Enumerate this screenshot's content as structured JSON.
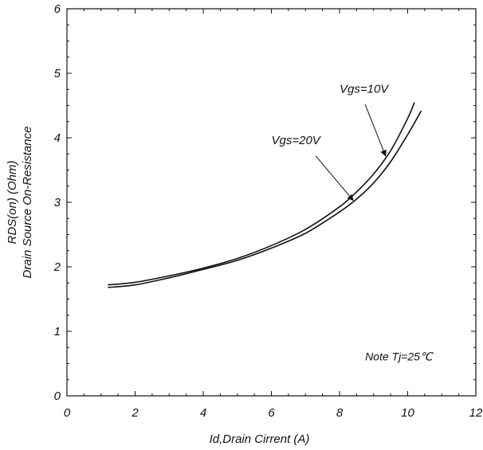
{
  "chart_data": {
    "type": "line",
    "title": "",
    "xlabel": "Id,Drain Cirrent (A)",
    "ylabel_lines": [
      "RDS(on) (Ohm)",
      "Drain Source On-Resistance"
    ],
    "xlim": [
      0,
      12
    ],
    "ylim": [
      0,
      6
    ],
    "x_ticks": [
      "0",
      "2",
      "4",
      "6",
      "8",
      "10",
      "12"
    ],
    "y_ticks": [
      "0",
      "1",
      "2",
      "3",
      "4",
      "5",
      "6"
    ],
    "grid": false,
    "series": [
      {
        "name": "Vgs=10V",
        "x": [
          1.2,
          2.0,
          3.0,
          4.0,
          5.0,
          6.0,
          7.0,
          8.0,
          8.5,
          9.0,
          9.5,
          10.0,
          10.2
        ],
        "y": [
          1.72,
          1.76,
          1.86,
          1.98,
          2.13,
          2.33,
          2.58,
          2.93,
          3.16,
          3.44,
          3.8,
          4.3,
          4.55
        ]
      },
      {
        "name": "Vgs=20V",
        "x": [
          1.2,
          2.0,
          3.0,
          4.0,
          5.0,
          6.0,
          7.0,
          8.0,
          8.5,
          9.0,
          9.5,
          10.0,
          10.4
        ],
        "y": [
          1.68,
          1.72,
          1.83,
          1.96,
          2.1,
          2.29,
          2.52,
          2.85,
          3.05,
          3.3,
          3.63,
          4.05,
          4.42
        ]
      }
    ],
    "annotations": [
      {
        "text": "Vgs=10V",
        "label_at": [
          8.0,
          4.7
        ],
        "arrow_from": [
          8.75,
          4.52
        ],
        "arrow_to": [
          9.35,
          3.72
        ]
      },
      {
        "text": "Vgs=20V",
        "label_at": [
          6.0,
          3.9
        ],
        "arrow_from": [
          7.3,
          3.72
        ],
        "arrow_to": [
          8.4,
          3.03
        ]
      },
      {
        "text": "Note Tj=25℃",
        "label_at": [
          8.75,
          0.55
        ]
      }
    ]
  }
}
